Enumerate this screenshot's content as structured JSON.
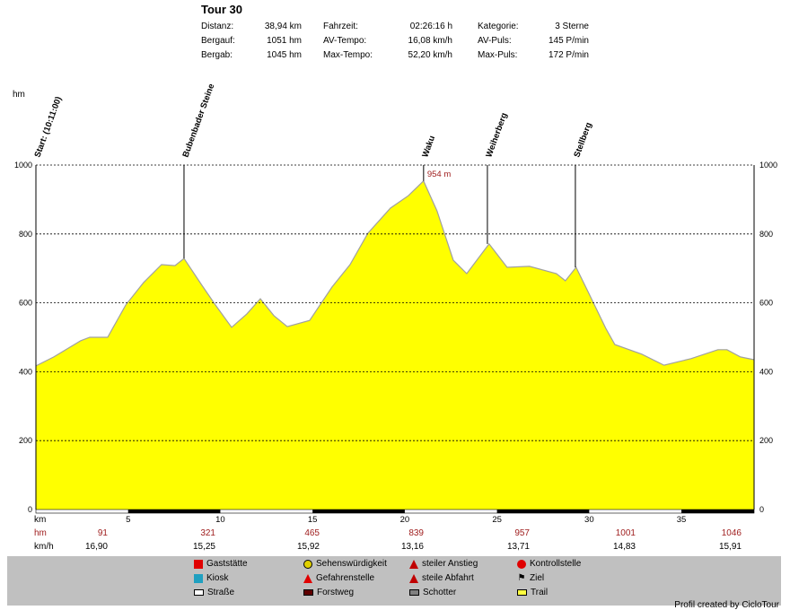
{
  "header": {
    "title": "Tour 30",
    "stats": [
      {
        "label": "Distanz:",
        "value": "38,94 km"
      },
      {
        "label": "Fahrzeit:",
        "value": "02:26:16 h"
      },
      {
        "label": "Kategorie:",
        "value": "3 Sterne"
      },
      {
        "label": "Bergauf:",
        "value": "1051 hm"
      },
      {
        "label": "AV-Tempo:",
        "value": "16,08 km/h"
      },
      {
        "label": "AV-Puls:",
        "value": "145 P/min"
      },
      {
        "label": "Bergab:",
        "value": "1045 hm"
      },
      {
        "label": "Max-Tempo:",
        "value": "52,20 km/h"
      },
      {
        "label": "Max-Puls:",
        "value": "172 P/min"
      }
    ]
  },
  "chart_data": {
    "type": "area",
    "ylabel": "hm",
    "xlabel": "km",
    "xlim": [
      0,
      38.94
    ],
    "ylim": [
      0,
      1000
    ],
    "yticks": [
      0,
      200,
      400,
      600,
      800,
      1000
    ],
    "xticks": [
      5,
      10,
      15,
      20,
      25,
      30,
      35
    ],
    "grid": true,
    "fill_color": "#ffff00",
    "x": [
      0,
      0.97,
      2.43,
      2.92,
      3.89,
      4.87,
      5.84,
      6.81,
      7.54,
      8.03,
      9.0,
      9.73,
      10.61,
      11.44,
      12.17,
      12.9,
      13.63,
      14.84,
      16.06,
      17.03,
      18.0,
      19.22,
      20.19,
      21.02,
      21.75,
      22.63,
      23.36,
      24.57,
      25.55,
      26.76,
      28.22,
      28.71,
      29.29,
      29.93,
      30.9,
      31.39,
      32.85,
      34.06,
      35.52,
      36.98,
      37.47,
      38.2,
      38.94
    ],
    "y": [
      417,
      443,
      490,
      500,
      500,
      594,
      659,
      711,
      708,
      729,
      651,
      594,
      529,
      568,
      612,
      563,
      531,
      549,
      646,
      711,
      802,
      875,
      911,
      954,
      867,
      724,
      685,
      771,
      703,
      706,
      685,
      664,
      703,
      633,
      526,
      479,
      451,
      419,
      438,
      464,
      464,
      443,
      435
    ],
    "waypoints": [
      {
        "label": "Start: (10:11:00)",
        "km": 0
      },
      {
        "label": "Bubenbader Steine",
        "km": 8.03
      },
      {
        "label": "Waku",
        "km": 21.02
      },
      {
        "label": "Weiherberg",
        "km": 24.48
      },
      {
        "label": "Stellberg",
        "km": 29.25
      }
    ],
    "peak_label": "954 m",
    "rows": {
      "hm_label": "hm",
      "hm": [
        "91",
        "321",
        "465",
        "839",
        "957",
        "1001",
        "1046"
      ],
      "kmh_label": "km/h",
      "kmh": [
        "16,90",
        "15,25",
        "15,92",
        "13,16",
        "13,71",
        "14,83",
        "15,91"
      ]
    }
  },
  "legend": [
    {
      "label": "Gaststätte",
      "icon": "restaurant-icon",
      "color": "#e00000"
    },
    {
      "label": "Sehenswürdigkeit",
      "icon": "smiley-icon",
      "color": "#e0d000"
    },
    {
      "label": "steiler Anstieg",
      "icon": "steep-climb-icon",
      "color": "#c00000"
    },
    {
      "label": "Kontrollstelle",
      "icon": "stop-icon",
      "color": "#e00000"
    },
    {
      "label": "Kiosk",
      "icon": "kiosk-icon",
      "color": "#20a0c0"
    },
    {
      "label": "Gefahrenstelle",
      "icon": "warning-icon",
      "color": "#e00000"
    },
    {
      "label": "steile Abfahrt",
      "icon": "steep-descent-icon",
      "color": "#c00000"
    },
    {
      "label": "Ziel",
      "icon": "finish-flag-icon",
      "color": "#000000"
    },
    {
      "label": "Straße",
      "icon": "road-icon",
      "color": "#ffffff"
    },
    {
      "label": "Forstweg",
      "icon": "forest-road-icon",
      "color": "#600000"
    },
    {
      "label": "Schotter",
      "icon": "gravel-icon",
      "color": "#808080"
    },
    {
      "label": "Trail",
      "icon": "trail-icon",
      "color": "#ffff40"
    }
  ],
  "footer": "Profil created by CicloTour"
}
